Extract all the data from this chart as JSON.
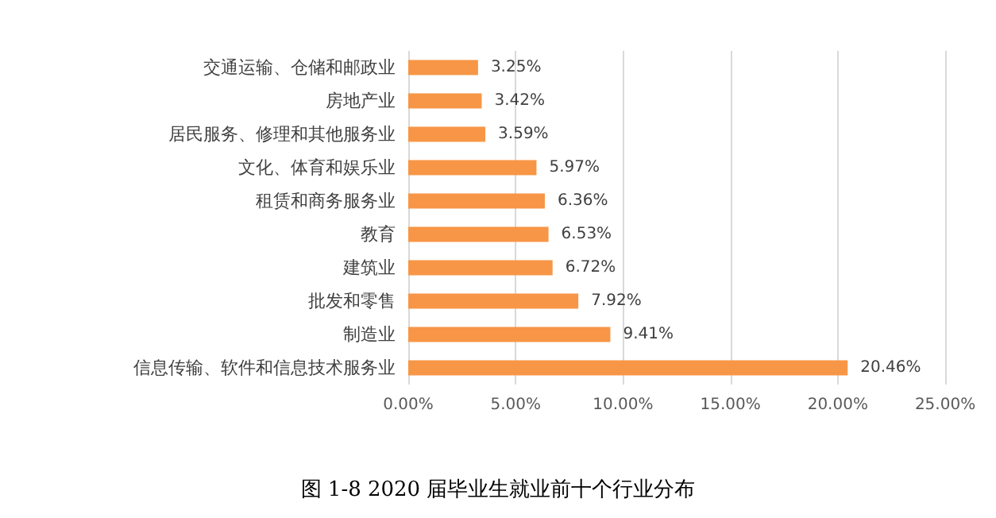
{
  "chart_data": {
    "type": "bar",
    "orientation": "horizontal",
    "title": "图 1-8 2020 届毕业生就业前十个行业分布",
    "categories": [
      "交通运输、仓储和邮政业",
      "房地产业",
      "居民服务、修理和其他服务业",
      "文化、体育和娱乐业",
      "租赁和商务服务业",
      "教育",
      "建筑业",
      "批发和零售",
      "制造业",
      "信息传输、软件和信息技术服务业"
    ],
    "values": [
      3.25,
      3.42,
      3.59,
      5.97,
      6.36,
      6.53,
      6.72,
      7.92,
      9.41,
      20.46
    ],
    "value_labels": [
      "3.25%",
      "3.42%",
      "3.59%",
      "5.97%",
      "6.36%",
      "6.53%",
      "6.72%",
      "7.92%",
      "9.41%",
      "20.46%"
    ],
    "color": "#f79646",
    "xlim": [
      0,
      25
    ],
    "xticks": [
      {
        "value": 0,
        "label": "0.00%"
      },
      {
        "value": 5,
        "label": "5.00%"
      },
      {
        "value": 10,
        "label": "10.00%"
      },
      {
        "value": 15,
        "label": "15.00%"
      },
      {
        "value": 20,
        "label": "20.00%"
      },
      {
        "value": 25,
        "label": "25.00%"
      }
    ],
    "grid": "x"
  }
}
